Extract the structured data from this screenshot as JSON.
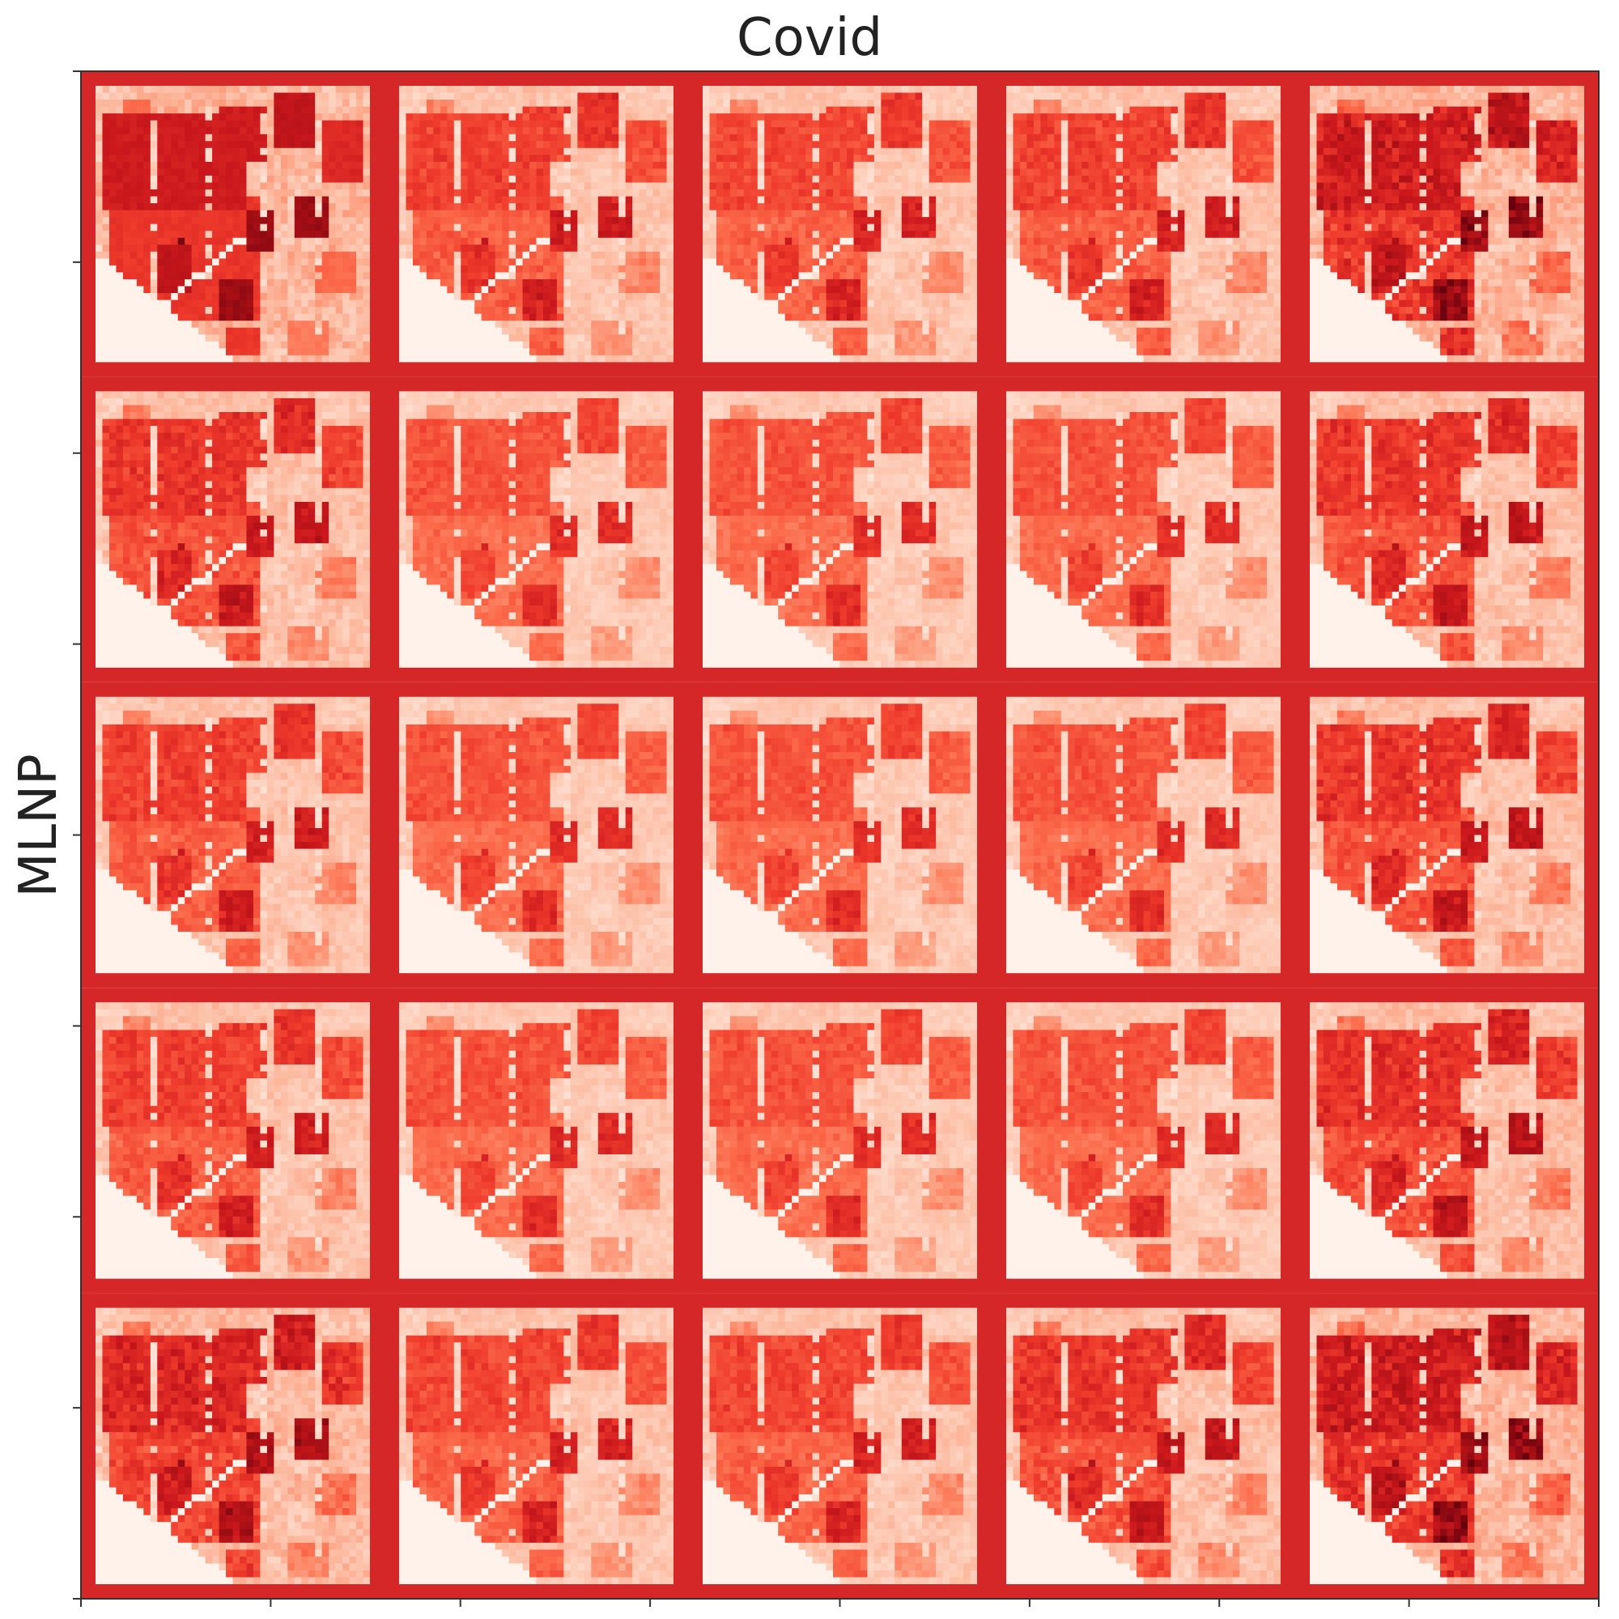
{
  "chart_data": {
    "type": "heatmap",
    "title": "Covid",
    "ylabel": "MLNP",
    "xlabel": "",
    "layout": {
      "rows": 5,
      "cols": 5
    },
    "colormap": "Reds",
    "colors": {
      "frame": "#d62728",
      "map_low": "#fff5f0",
      "map_high": "#67000d",
      "axis": "#333333"
    },
    "x_ticks": 9,
    "y_ticks": 9,
    "tick_labels_shown": false,
    "panel_intensity": [
      [
        1.0,
        0.6,
        0.55,
        0.6,
        1.0
      ],
      [
        0.7,
        0.45,
        0.45,
        0.45,
        0.7
      ],
      [
        0.6,
        0.45,
        0.45,
        0.45,
        0.7
      ],
      [
        0.6,
        0.45,
        0.45,
        0.45,
        0.75
      ],
      [
        0.85,
        0.55,
        0.55,
        0.7,
        1.0
      ]
    ]
  }
}
